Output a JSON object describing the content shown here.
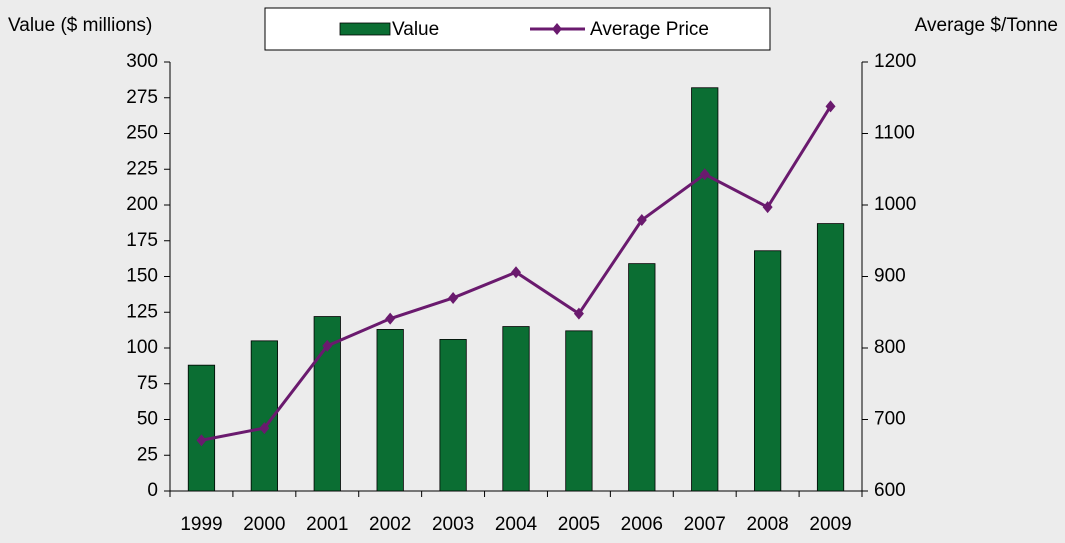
{
  "chart_data": {
    "type": "bar",
    "y_label": "Value ($ millions)",
    "y2_label": "Average $/Tonne",
    "categories": [
      "1999",
      "2000",
      "2001",
      "2002",
      "2003",
      "2004",
      "2005",
      "2006",
      "2007",
      "2008",
      "2009"
    ],
    "series": [
      {
        "name": "Value",
        "type": "bar",
        "color": "#0b6e33",
        "values": [
          88,
          105,
          122,
          113,
          106,
          115,
          112,
          159,
          282,
          168,
          187
        ]
      },
      {
        "name": "Average Price",
        "type": "line",
        "axis": "y2",
        "color": "#6a1a6e",
        "values": [
          671,
          688,
          803,
          841,
          870,
          906,
          848,
          979,
          1043,
          997,
          1138
        ]
      }
    ],
    "ylim": [
      0,
      300
    ],
    "yticks": [
      0,
      25,
      50,
      75,
      100,
      125,
      150,
      175,
      200,
      225,
      250,
      275,
      300
    ],
    "y2lim": [
      600,
      1200
    ],
    "y2ticks": [
      600,
      700,
      800,
      900,
      1000,
      1100,
      1200
    ],
    "legend": "top"
  }
}
